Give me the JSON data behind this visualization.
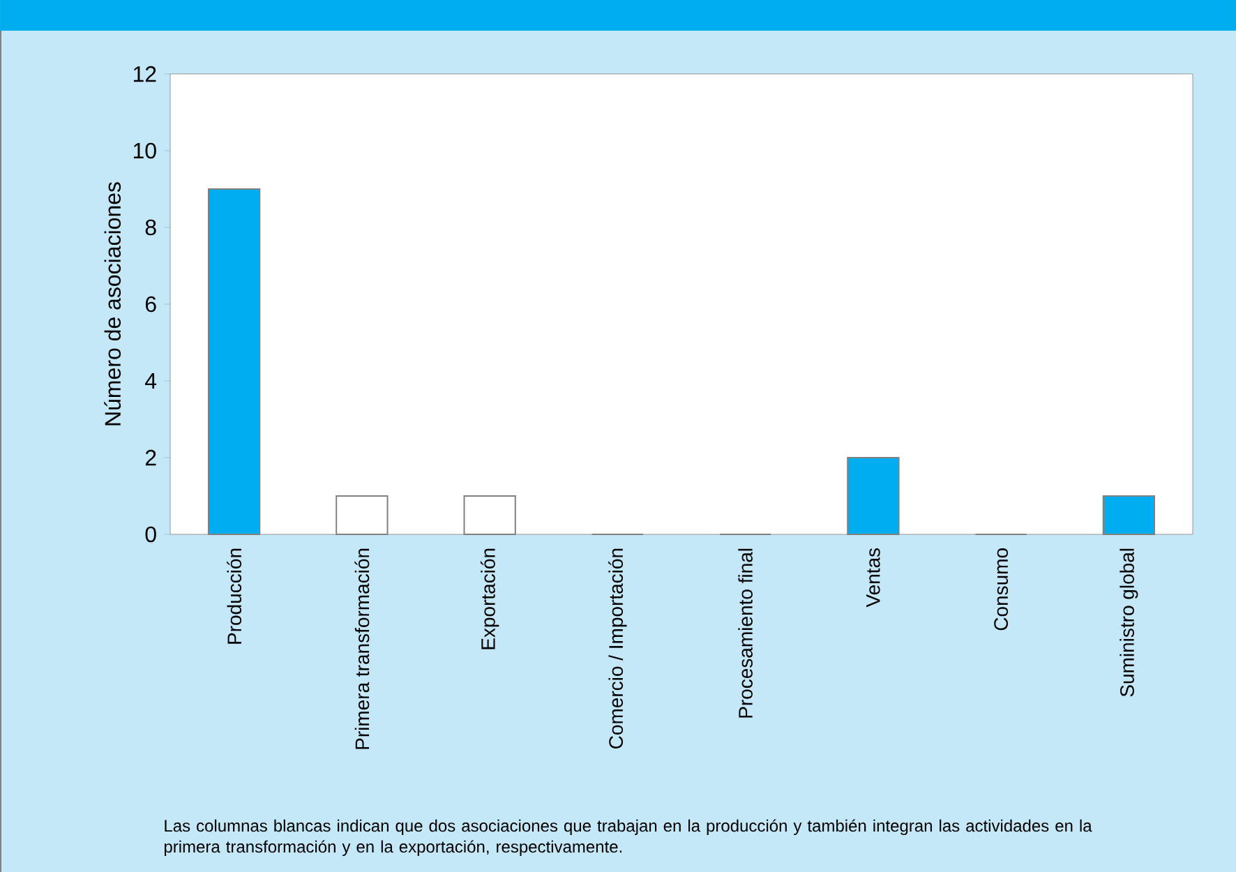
{
  "chart_data": {
    "type": "bar",
    "ylabel": "Número de asociaciones",
    "categories": [
      "Producción",
      "Primera transformación",
      "Exportación",
      "Comercio / Importación",
      "Procesamiento final",
      "Ventas",
      "Consumo",
      "Suministro global"
    ],
    "values": [
      9,
      1,
      1,
      0,
      0,
      2,
      0,
      1
    ],
    "colors": [
      "#00aeef",
      "#ffffff",
      "#ffffff",
      "#ffffff",
      "#ffffff",
      "#00aeef",
      "#ffffff",
      "#00aeef"
    ],
    "ylim": [
      0,
      12
    ],
    "yticks": [
      0,
      2,
      4,
      6,
      8,
      10,
      12
    ],
    "grid": false,
    "annotations": [
      "Las columnas blancas indican que dos asociaciones que trabajan en la producción y también integran las actividades en la primera transformación y en la exportación, respectivamente."
    ]
  }
}
